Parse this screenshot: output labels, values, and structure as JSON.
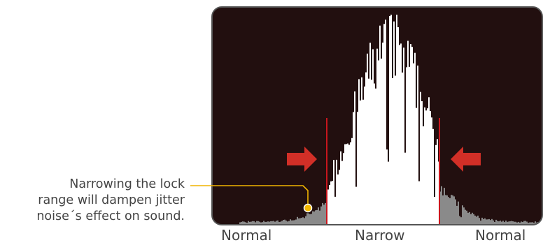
{
  "callout": {
    "lines": [
      "Narrowing the lock",
      "range will dampen jitter",
      "noise´s effect on sound."
    ]
  },
  "axis_labels": {
    "left": "Normal",
    "center": "Narrow",
    "right": "Normal"
  },
  "colors": {
    "panel_background": "#220f0f",
    "panel_border": "#555555",
    "histogram_inside": "#ffffff",
    "histogram_outside": "#8a8a8a",
    "range_lines": "#c8161d",
    "arrows": "#d22f27",
    "callout_line": "#f0b400",
    "callout_dot": "#f5b800",
    "text": "#444444"
  },
  "icons": {
    "left_arrow": "arrow-right-icon",
    "right_arrow": "arrow-left-icon",
    "marker": "dot-marker-icon"
  }
}
